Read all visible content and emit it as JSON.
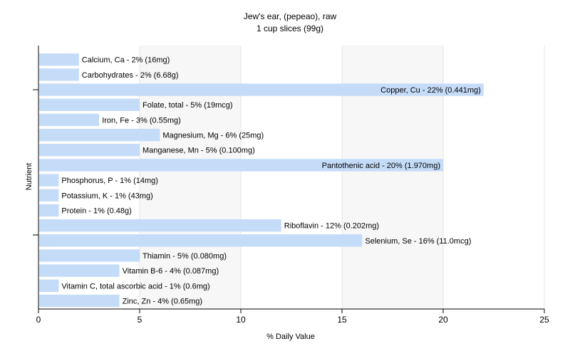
{
  "chart_data": {
    "type": "bar",
    "orientation": "horizontal",
    "title": "Jew's ear, (pepeao), raw",
    "subtitle": "1 cup slices (99g)",
    "xlabel": "% Daily Value",
    "ylabel": "Nutrient",
    "xlim": [
      0,
      25
    ],
    "xticks": [
      0,
      5,
      10,
      15,
      20,
      25
    ],
    "grid": true,
    "bar_color": "#c5dcf9",
    "categories": [
      "Calcium, Ca",
      "Carbohydrates",
      "Copper, Cu",
      "Folate, total",
      "Iron, Fe",
      "Magnesium, Mg",
      "Manganese, Mn",
      "Pantothenic acid",
      "Phosphorus, P",
      "Potassium, K",
      "Protein",
      "Riboflavin",
      "Selenium, Se",
      "Thiamin",
      "Vitamin B-6",
      "Vitamin C, total ascorbic acid",
      "Zinc, Zn"
    ],
    "values": [
      2,
      2,
      22,
      5,
      3,
      6,
      5,
      20,
      1,
      1,
      1,
      12,
      16,
      5,
      4,
      1,
      4
    ],
    "labels": [
      "Calcium, Ca - 2% (16mg)",
      "Carbohydrates - 2% (6.68g)",
      "Copper, Cu - 22% (0.441mg)",
      "Folate, total - 5% (19mcg)",
      "Iron, Fe - 3% (0.55mg)",
      "Magnesium, Mg - 6% (25mg)",
      "Manganese, Mn - 5% (0.100mg)",
      "Pantothenic acid - 20% (1.970mg)",
      "Phosphorus, P - 1% (14mg)",
      "Potassium, K - 1% (43mg)",
      "Protein - 1% (0.48g)",
      "Riboflavin - 12% (0.202mg)",
      "Selenium, Se - 16% (11.0mcg)",
      "Thiamin - 5% (0.080mg)",
      "Vitamin B-6 - 4% (0.087mg)",
      "Vitamin C, total ascorbic acid - 1% (0.6mg)",
      "Zinc, Zn - 4% (0.65mg)"
    ]
  }
}
